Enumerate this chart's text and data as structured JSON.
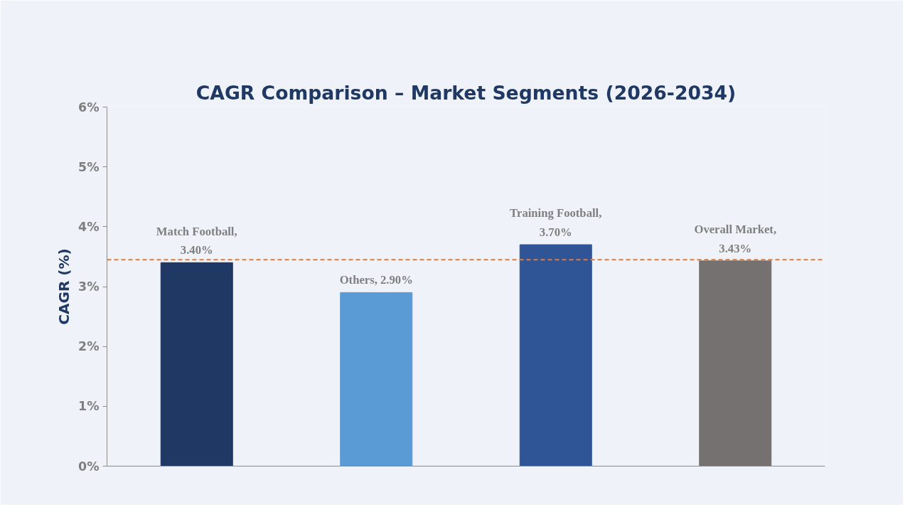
{
  "chart_data": {
    "type": "bar",
    "title": "CAGR Comparison – Market Segments (2026-2034)",
    "ylabel": "CAGR (%)",
    "categories": [
      null,
      null,
      null,
      null
    ],
    "values": [
      3.4,
      2.9,
      3.7,
      3.43
    ],
    "colors": [
      "#203864",
      "#5b9bd5",
      "#2f5597",
      "#767171"
    ],
    "value_labels": [
      "Match Football,\n3.40%",
      "Others, 2.90%",
      "Training Football,\n3.70%",
      "Overall Market,\n3.43%"
    ],
    "ylim": [
      0,
      6
    ],
    "yticks": [
      {
        "value": 0,
        "label": "0%"
      },
      {
        "value": 1,
        "label": "1%"
      },
      {
        "value": 2,
        "label": "2%"
      },
      {
        "value": 3,
        "label": "3%"
      },
      {
        "value": 4,
        "label": "4%"
      },
      {
        "value": 5,
        "label": "5%"
      },
      {
        "value": 6,
        "label": "6%"
      }
    ],
    "ref_lines": [
      {
        "axis": "y",
        "value": 3.45,
        "label": null,
        "color": "#e07b39",
        "line_style": "dashed"
      }
    ],
    "tick_labels": "y",
    "grid": false
  }
}
